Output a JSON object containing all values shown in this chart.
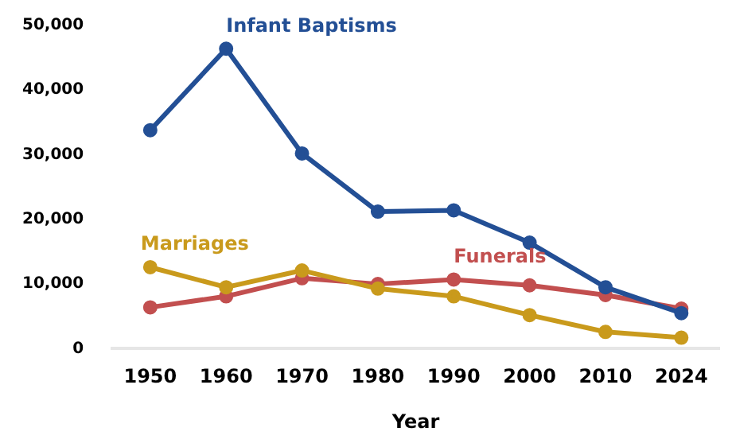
{
  "chart_data": {
    "type": "line",
    "xlabel": "Year",
    "categories": [
      "1950",
      "1960",
      "1970",
      "1980",
      "1990",
      "2000",
      "2010",
      "2024"
    ],
    "series": [
      {
        "name": "Infant Baptisms",
        "color": "#234f95",
        "values": [
          33800,
          46400,
          30200,
          21200,
          21400,
          16400,
          9500,
          5500
        ]
      },
      {
        "name": "Marriages",
        "color": "#c99a1c",
        "values": [
          12600,
          9500,
          12100,
          9300,
          8100,
          5200,
          2600,
          1700
        ]
      },
      {
        "name": "Funerals",
        "color": "#c24f4f",
        "values": [
          6400,
          8100,
          10900,
          10000,
          10700,
          9800,
          8300,
          6200
        ]
      }
    ],
    "ylim": [
      0,
      50000
    ],
    "yticks": [
      0,
      {
        "value": 10000,
        "label": "10,000"
      },
      {
        "value": 20000,
        "label": "20,000"
      },
      {
        "value": 30000,
        "label": "30,000"
      },
      {
        "value": 40000,
        "label": "40,000"
      },
      {
        "value": 50000,
        "label": "50,000"
      }
    ],
    "grid": false,
    "legend": false,
    "marker": "circle",
    "line_style": "solid"
  }
}
